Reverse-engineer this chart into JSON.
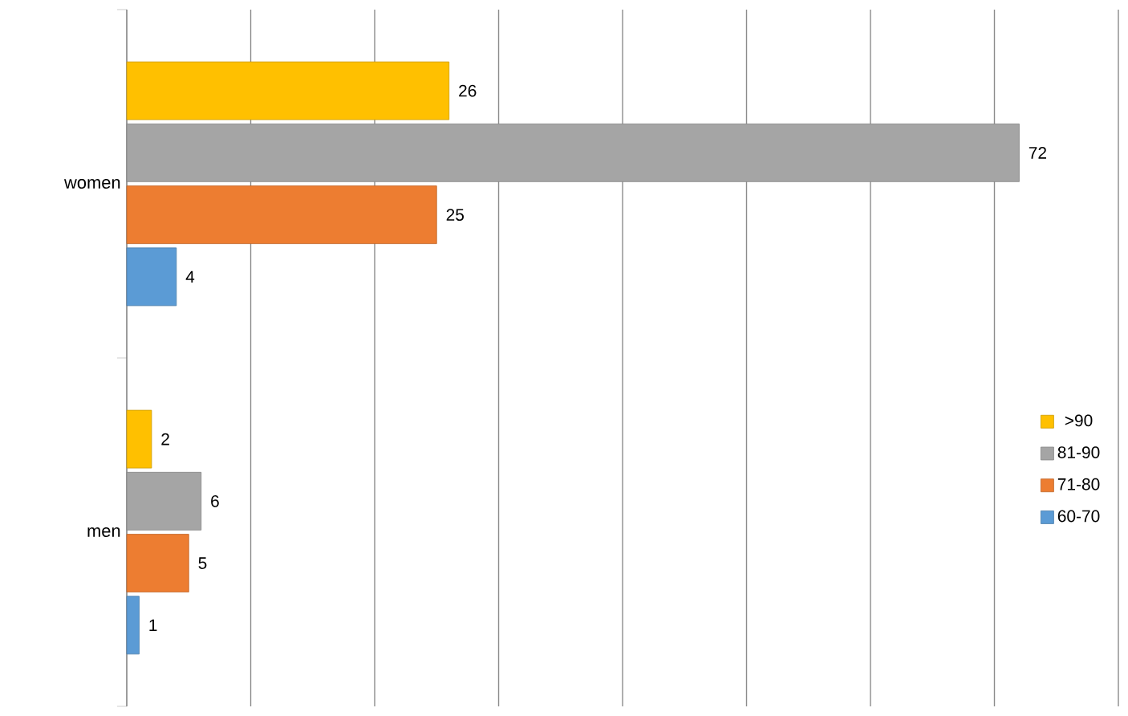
{
  "chart_data": {
    "type": "bar",
    "orientation": "horizontal",
    "categories": [
      "women",
      "men"
    ],
    "series": [
      {
        "name": ">90",
        "color": "#ffc000",
        "values": [
          26,
          2
        ]
      },
      {
        "name": "81-90",
        "color": "#a5a5a5",
        "values": [
          72,
          6
        ]
      },
      {
        "name": "71-80",
        "color": "#ed7d31",
        "values": [
          25,
          5
        ]
      },
      {
        "name": "60-70",
        "color": "#5b9bd5",
        "values": [
          4,
          1
        ]
      }
    ],
    "xlim": [
      0,
      80
    ],
    "xticks": [
      {
        "value": 0,
        "label": null
      },
      {
        "value": 10,
        "label": null
      },
      {
        "value": 20,
        "label": null
      },
      {
        "value": 30,
        "label": null
      },
      {
        "value": 40,
        "label": null
      },
      {
        "value": 50,
        "label": null
      },
      {
        "value": 60,
        "label": null
      },
      {
        "value": 70,
        "label": null
      },
      {
        "value": 80,
        "label": null
      }
    ],
    "grid": "x",
    "legend": "right",
    "data_labels": true,
    "tick_labels": "y"
  }
}
